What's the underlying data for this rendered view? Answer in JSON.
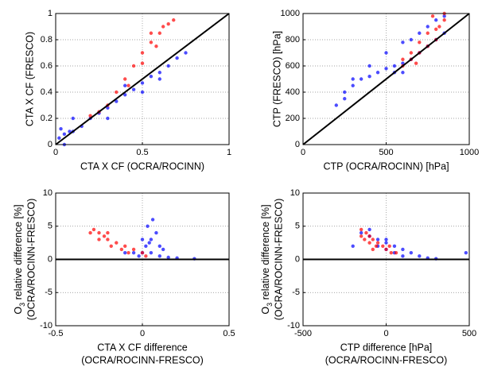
{
  "chart_data": [
    {
      "type": "scatter",
      "xlabel": [
        "CTA X CF (OCRA/ROCINN)"
      ],
      "ylabel": [
        "CTA X CF (FRESCO)"
      ],
      "reference": "diagonal",
      "grid": true,
      "xlim": [
        0,
        1
      ],
      "ylim": [
        0,
        1
      ],
      "xticks": [
        0,
        0.5,
        1
      ],
      "yticks": [
        0,
        0.2,
        0.4,
        0.6,
        0.8,
        1
      ],
      "series": [
        {
          "color": "#0000ff",
          "x": [
            0.02,
            0.05,
            0.08,
            0.1,
            0.15,
            0.2,
            0.25,
            0.3,
            0.35,
            0.4,
            0.45,
            0.5,
            0.55,
            0.6,
            0.65,
            0.7,
            0.75,
            0.03,
            0.1,
            0.3,
            0.5,
            0.6,
            0.4,
            0.05
          ],
          "values": [
            0.05,
            0.08,
            0.1,
            0.1,
            0.14,
            0.2,
            0.24,
            0.28,
            0.33,
            0.38,
            0.42,
            0.47,
            0.52,
            0.55,
            0.6,
            0.66,
            0.7,
            0.12,
            0.2,
            0.2,
            0.4,
            0.5,
            0.45,
            0.0
          ]
        },
        {
          "color": "#ff0000",
          "x": [
            0.3,
            0.35,
            0.4,
            0.45,
            0.5,
            0.55,
            0.6,
            0.65,
            0.68,
            0.42,
            0.5,
            0.58,
            0.62,
            0.2,
            0.25,
            0.55
          ],
          "values": [
            0.3,
            0.4,
            0.5,
            0.6,
            0.7,
            0.78,
            0.85,
            0.92,
            0.95,
            0.45,
            0.62,
            0.75,
            0.9,
            0.22,
            0.25,
            0.85
          ]
        }
      ]
    },
    {
      "type": "scatter",
      "xlabel": [
        "CTP (OCRA/ROCINN) [hPa]"
      ],
      "ylabel": [
        "CTP (FRESCO) [hPa]"
      ],
      "reference": "diagonal",
      "grid": true,
      "xlim": [
        0,
        1000
      ],
      "ylim": [
        0,
        1000
      ],
      "xticks": [
        0,
        500,
        1000
      ],
      "yticks": [
        0,
        200,
        400,
        600,
        800,
        1000
      ],
      "series": [
        {
          "color": "#0000ff",
          "x": [
            200,
            250,
            300,
            350,
            400,
            450,
            500,
            550,
            600,
            650,
            700,
            750,
            800,
            850,
            300,
            400,
            500,
            600,
            700,
            800,
            250,
            550,
            650,
            750,
            850,
            600
          ],
          "values": [
            300,
            350,
            450,
            500,
            520,
            550,
            580,
            600,
            620,
            650,
            700,
            750,
            800,
            850,
            500,
            600,
            700,
            780,
            850,
            950,
            400,
            550,
            800,
            900,
            980,
            550
          ]
        },
        {
          "color": "#ff0000",
          "x": [
            600,
            650,
            700,
            750,
            800,
            820,
            850,
            650,
            700,
            750,
            800,
            600,
            680,
            780,
            850
          ],
          "values": [
            600,
            650,
            700,
            750,
            800,
            900,
            950,
            700,
            780,
            850,
            880,
            650,
            620,
            980,
            1000
          ]
        }
      ]
    },
    {
      "type": "scatter",
      "xlabel": [
        "CTA X CF difference",
        "(OCRA/ROCINN-FRESCO)"
      ],
      "ylabel": [
        "O",
        "3",
        " relative difference [%]",
        "(OCRA/ROCINN-FRESCO)"
      ],
      "reference": "zero",
      "grid": true,
      "xlim": [
        -0.5,
        0.5
      ],
      "ylim": [
        -10,
        10
      ],
      "xticks": [
        -0.5,
        0,
        0.5
      ],
      "yticks": [
        -10,
        -5,
        0,
        5,
        10
      ],
      "series": [
        {
          "color": "#0000ff",
          "x": [
            0,
            0.02,
            0.05,
            0.08,
            0.03,
            0,
            0.05,
            0.1,
            -0.05,
            0.1,
            0.15,
            0.2,
            -0.1,
            0.06,
            0.04,
            0.12,
            -0.02,
            0.3
          ],
          "values": [
            1,
            2,
            3,
            4,
            5,
            3,
            1,
            2,
            1,
            0.5,
            0.3,
            0.2,
            1,
            6,
            2.5,
            1.5,
            0.5,
            0.1
          ]
        },
        {
          "color": "#ff0000",
          "x": [
            -0.25,
            -0.28,
            -0.22,
            -0.2,
            -0.15,
            -0.1,
            -0.05,
            0,
            -0.25,
            -0.18,
            -0.12,
            -0.3,
            -0.2,
            -0.08,
            0.02
          ],
          "values": [
            4,
            4.5,
            3.5,
            3,
            2.5,
            2,
            1.5,
            1,
            3,
            2,
            1.5,
            4,
            4,
            1,
            0.5
          ]
        }
      ]
    },
    {
      "type": "scatter",
      "xlabel": [
        "CTP difference [hPa]",
        "(OCRA/ROCINN-FRESCO)"
      ],
      "ylabel": [
        "O",
        "3",
        " relative difference [%]",
        "(OCRA/ROCINN-FRESCO)"
      ],
      "reference": "zero",
      "grid": true,
      "xlim": [
        -500,
        500
      ],
      "ylim": [
        -10,
        10
      ],
      "xticks": [
        -500,
        0,
        500
      ],
      "yticks": [
        -10,
        -5,
        0,
        5,
        10
      ],
      "series": [
        {
          "color": "#0000ff",
          "x": [
            -150,
            -100,
            -50,
            0,
            50,
            100,
            150,
            200,
            -50,
            0,
            50,
            100,
            -200,
            250,
            300,
            -100,
            0,
            480
          ],
          "values": [
            4,
            3.5,
            3,
            2.5,
            2,
            1.5,
            1,
            0.5,
            2,
            1.5,
            1,
            0.5,
            2,
            0.2,
            0.1,
            4.5,
            3,
            1
          ]
        },
        {
          "color": "#ff0000",
          "x": [
            -150,
            -120,
            -100,
            -80,
            -50,
            -20,
            0,
            30,
            -130,
            -100,
            -60,
            -150,
            -80,
            20,
            60
          ],
          "values": [
            4.5,
            4,
            3.5,
            3,
            2.5,
            2,
            1.5,
            1,
            3,
            2.5,
            2,
            3.5,
            1.5,
            2,
            1
          ]
        }
      ]
    }
  ]
}
